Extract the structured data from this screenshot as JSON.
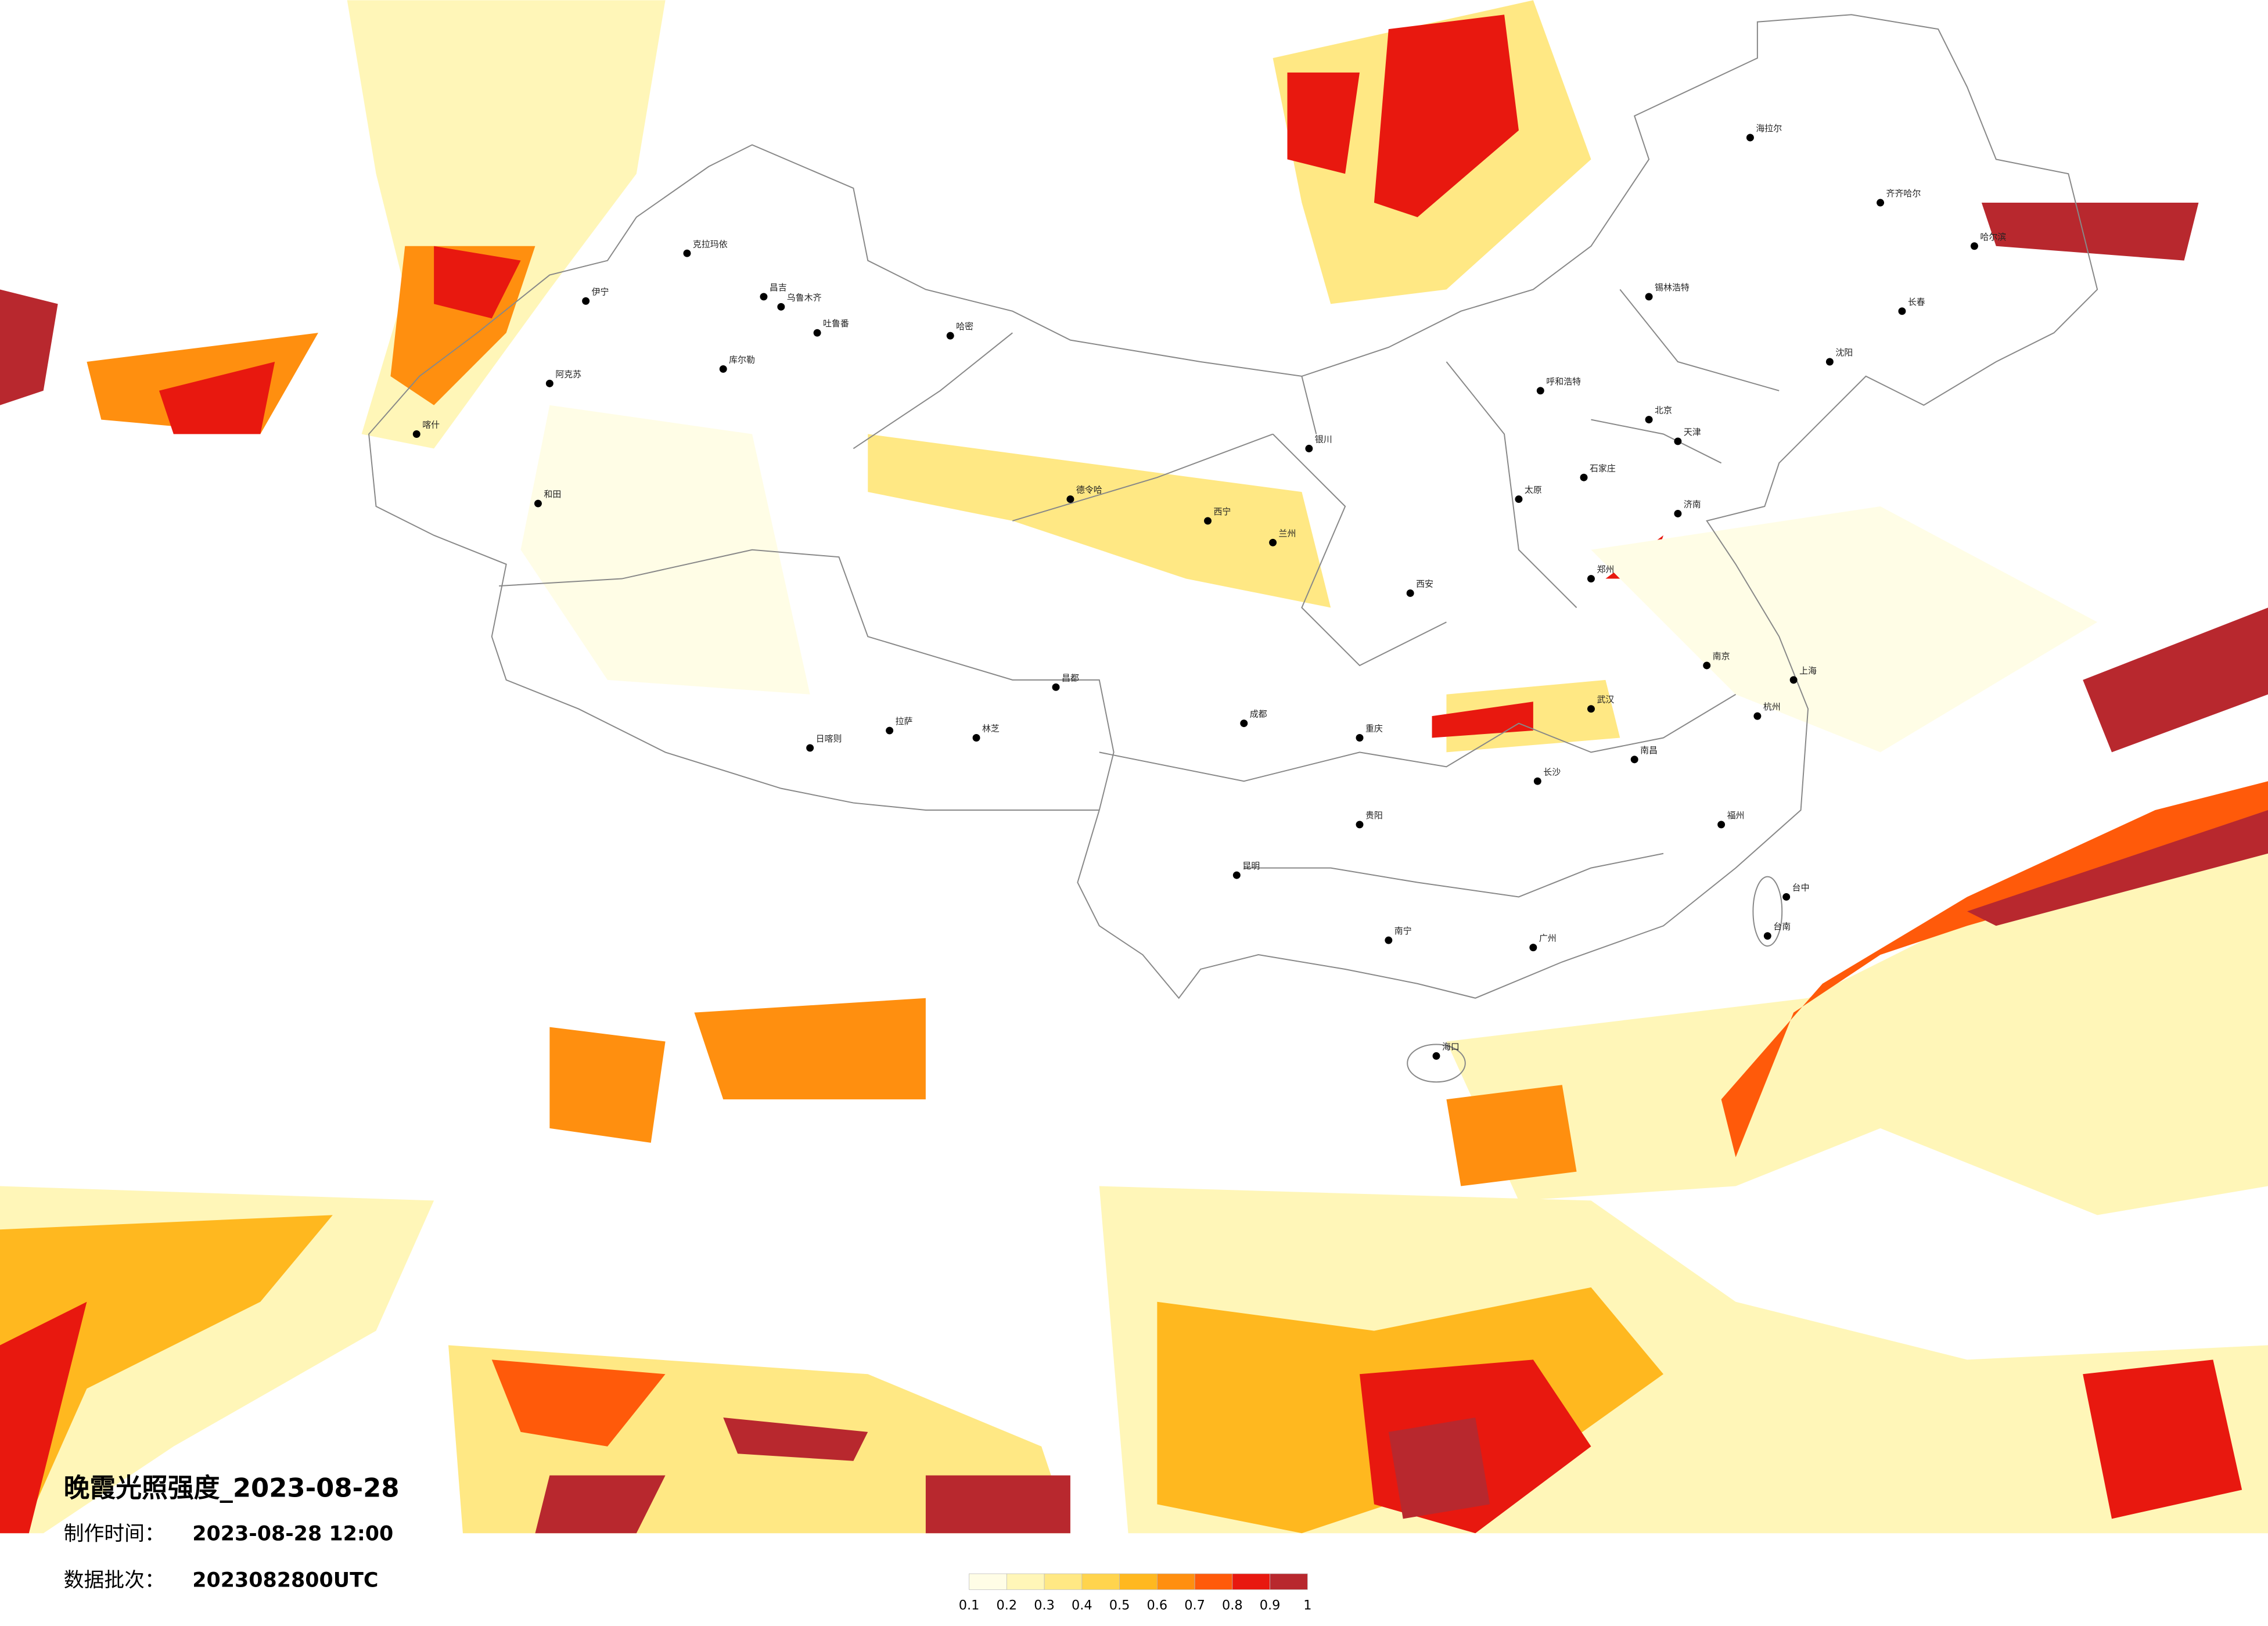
{
  "header": {
    "title": "晚霞光照强度_2023-08-28",
    "made_label": "制作时间：",
    "made_value": "2023-08-28 12:00",
    "batch_label": "数据批次：",
    "batch_value": "2023082800UTC"
  },
  "legend": {
    "ticks": [
      "0.1",
      "0.2",
      "0.3",
      "0.4",
      "0.5",
      "0.6",
      "0.7",
      "0.8",
      "0.9",
      "1"
    ],
    "colors": [
      "#fffde6",
      "#fff6b8",
      "#ffe884",
      "#ffd44d",
      "#ffb81f",
      "#ff8f0f",
      "#ff5a0a",
      "#e8180f",
      "#b8282e"
    ]
  },
  "map": {
    "cities": [
      "克拉玛依",
      "昌吉",
      "乌鲁木齐",
      "吐鲁番",
      "库尔勒",
      "阿克苏",
      "和田",
      "伊宁",
      "喀什",
      "哈密",
      "德令哈",
      "拉萨",
      "日喀则",
      "林芝",
      "昌都",
      "西宁",
      "兰州",
      "银川",
      "呼和浩特",
      "北京",
      "天津",
      "石家庄",
      "太原",
      "郑州",
      "西安",
      "武汉",
      "长沙",
      "南昌",
      "成都",
      "重庆",
      "贵阳",
      "昆明",
      "南宁",
      "广州",
      "福州",
      "杭州",
      "南京",
      "上海",
      "济南",
      "沈阳",
      "长春",
      "哈尔滨",
      "齐齐哈尔",
      "海拉尔",
      "锡林浩特",
      "海口",
      "台中",
      "台南"
    ]
  }
}
